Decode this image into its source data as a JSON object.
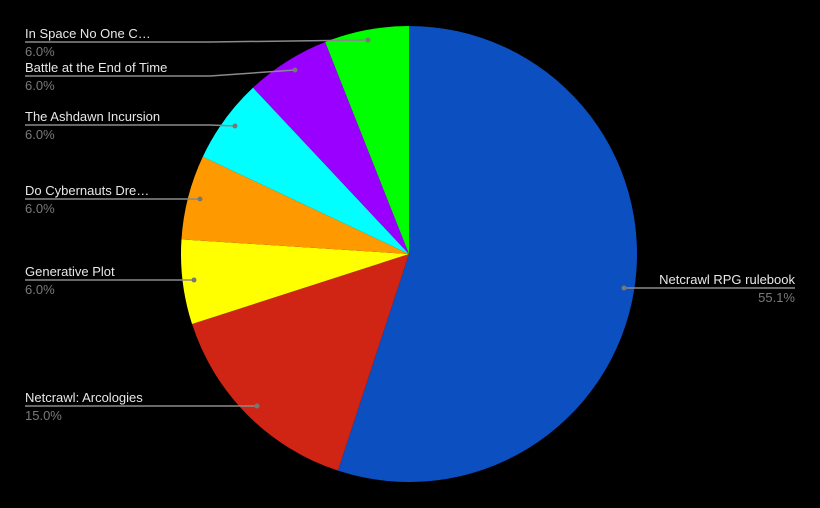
{
  "chart_data": {
    "type": "pie",
    "title": "",
    "start_angle": "top",
    "direction": "clockwise",
    "legend": "none (callout labels)",
    "slices": [
      {
        "label": "Netcrawl RPG rulebook",
        "value": 55.1,
        "pct_label": "55.1%",
        "color": "#0b4fc0"
      },
      {
        "label": "Netcrawl: Arcologies",
        "value": 15.0,
        "pct_label": "15.0%",
        "color": "#d02414"
      },
      {
        "label": "Generative Plot",
        "value": 6.0,
        "pct_label": "6.0%",
        "color": "#ffff00"
      },
      {
        "label": "Do Cybernauts Dre…",
        "value": 6.0,
        "pct_label": "6.0%",
        "color": "#ff9900"
      },
      {
        "label": "The Ashdawn Incursion",
        "value": 6.0,
        "pct_label": "6.0%",
        "color": "#00ffff"
      },
      {
        "label": "Battle at the End of Time",
        "value": 6.0,
        "pct_label": "6.0%",
        "color": "#9900ff"
      },
      {
        "label": "In Space No One C…",
        "value": 6.0,
        "pct_label": "6.0%",
        "color": "#00ff00"
      }
    ],
    "background": "#000000"
  }
}
